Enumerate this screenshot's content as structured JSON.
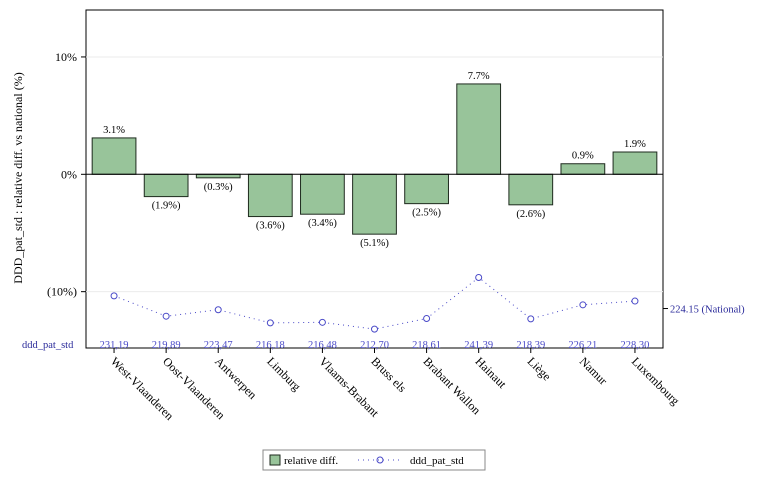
{
  "chart_data": {
    "type": "bar",
    "categories": [
      "West-Vlaanderen",
      "Oost-Vlaanderen",
      "Antwerpen",
      "Limburg",
      "Vlaams-Brabant",
      "Bruss els",
      "Brabant Wallon",
      "Hainaut",
      "Liège",
      "Namur",
      "Luxembourg"
    ],
    "series": [
      {
        "name": "relative diff.",
        "type": "bar",
        "values": [
          3.1,
          -1.9,
          -0.3,
          -3.6,
          -3.4,
          -5.1,
          -2.5,
          7.7,
          -2.6,
          0.9,
          1.9
        ],
        "labels": [
          "3.1%",
          "(1.9%)",
          "(0.3%)",
          "(3.6%)",
          "(3.4%)",
          "(5.1%)",
          "(2.5%)",
          "7.7%",
          "(2.6%)",
          "0.9%",
          "1.9%"
        ]
      },
      {
        "name": "ddd_pat_std",
        "type": "line",
        "values": [
          231.19,
          219.89,
          223.47,
          216.18,
          216.48,
          212.7,
          218.61,
          241.39,
          218.39,
          226.21,
          228.3
        ],
        "labels": [
          "231,19",
          "219,89",
          "223,47",
          "216,18",
          "216,48",
          "212,70",
          "218,61",
          "241,39",
          "218,39",
          "226,21",
          "228,30"
        ]
      }
    ],
    "ylabel": "DDD_pat_std : relative diff. vs national (%)",
    "yticks": [
      {
        "value": 10,
        "label": "10%"
      },
      {
        "value": 0,
        "label": "0%"
      },
      {
        "value": -10,
        "label": "(10%)"
      }
    ],
    "ylim": [
      -14.8,
      14
    ],
    "secondary": {
      "ylim": [
        200,
        250
      ],
      "reference": {
        "value": 224.15,
        "label": "224.15 (National)"
      },
      "row_label": "ddd_pat_std"
    },
    "legend": {
      "position": "bottom-center",
      "entries": [
        "relative diff.",
        "ddd_pat_std"
      ]
    },
    "colors": {
      "bar_fill": "#98c49a",
      "bar_stroke": "#1e2a1e",
      "line": "#4a4ac8",
      "reference_text": "#2a2a9a",
      "grid": "#ebebeb"
    }
  }
}
